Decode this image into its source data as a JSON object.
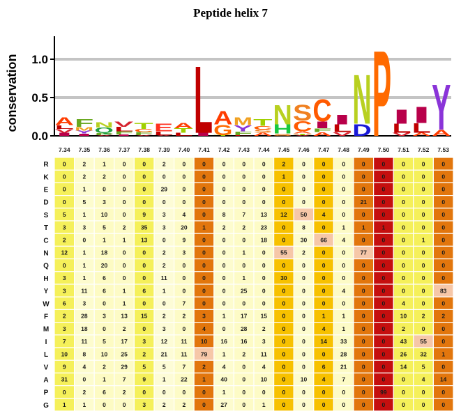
{
  "title": "Peptide helix 7",
  "chart_data": [
    {
      "type": "sequence-logo",
      "ylabel": "conservation",
      "ylim": [
        0,
        1.3
      ],
      "yticks": [
        "0.0",
        "0.5",
        "1.0"
      ],
      "grid": true,
      "positions": [
        "7.34",
        "7.35",
        "7.36",
        "7.37",
        "7.38",
        "7.39",
        "7.40",
        "7.41",
        "7.42",
        "7.43",
        "7.44",
        "7.45",
        "7.46",
        "7.47",
        "7.48",
        "7.49",
        "7.50",
        "7.51",
        "7.52",
        "7.53"
      ],
      "stacks": [
        [
          [
            "I",
            0.04
          ],
          [
            "V",
            0.05
          ],
          [
            "L",
            0.05
          ],
          [
            "A",
            0.1
          ]
        ],
        [
          [
            "I",
            0.03
          ],
          [
            "Y",
            0.04
          ],
          [
            "M",
            0.05
          ],
          [
            "F",
            0.1
          ]
        ],
        [
          [
            "V",
            0.01
          ],
          [
            "F",
            0.03
          ],
          [
            "Q",
            0.07
          ],
          [
            "N",
            0.07
          ]
        ],
        [
          [
            "I",
            0.02
          ],
          [
            "F",
            0.04
          ],
          [
            "L",
            0.06
          ],
          [
            "V",
            0.07
          ]
        ],
        [
          [
            "V",
            0.01
          ],
          [
            "F",
            0.04
          ],
          [
            "C",
            0.04
          ],
          [
            "T",
            0.08
          ]
        ],
        [
          [
            "V",
            0.01
          ],
          [
            "L",
            0.05
          ],
          [
            "E",
            0.1
          ]
        ],
        [
          [
            "L",
            0.04
          ],
          [
            "T",
            0.06
          ],
          [
            "A",
            0.07
          ]
        ],
        [
          [
            "I",
            0.04
          ],
          [
            "L",
            0.9
          ]
        ],
        [
          [
            "T",
            0.01
          ],
          [
            "G",
            0.14
          ],
          [
            "A",
            0.18
          ]
        ],
        [
          [
            "L",
            0.01
          ],
          [
            "F",
            0.05
          ],
          [
            "Y",
            0.08
          ],
          [
            "M",
            0.1
          ]
        ],
        [
          [
            "A",
            0.04
          ],
          [
            "S",
            0.04
          ],
          [
            "C",
            0.05
          ],
          [
            "T",
            0.09
          ]
        ],
        [
          [
            "S",
            0.03
          ],
          [
            "H",
            0.12
          ],
          [
            "N",
            0.26
          ]
        ],
        [
          [
            "V",
            0.01
          ],
          [
            "T",
            0.02
          ],
          [
            "A",
            0.03
          ],
          [
            "C",
            0.14
          ],
          [
            "S",
            0.21
          ]
        ],
        [
          [
            "A",
            0.05
          ],
          [
            "F",
            0.05
          ],
          [
            "I",
            0.09
          ],
          [
            "C",
            0.3
          ]
        ],
        [
          [
            "V",
            0.05
          ],
          [
            "L",
            0.1
          ],
          [
            "I",
            0.13
          ]
        ],
        [
          [
            "D",
            0.16
          ],
          [
            "N",
            0.66
          ]
        ],
        [
          [
            "P",
            1.15
          ]
        ],
        [
          [
            "V",
            0.04
          ],
          [
            "L",
            0.12
          ],
          [
            "I",
            0.19
          ]
        ],
        [
          [
            "A",
            0.04
          ],
          [
            "L",
            0.13
          ],
          [
            "I",
            0.22
          ]
        ],
        [
          [
            "A",
            0.08
          ],
          [
            "Y",
            0.61
          ]
        ]
      ]
    },
    {
      "type": "heatmap",
      "columns": [
        "7.34",
        "7.35",
        "7.36",
        "7.37",
        "7.38",
        "7.39",
        "7.40",
        "7.41",
        "7.42",
        "7.43",
        "7.44",
        "7.45",
        "7.46",
        "7.47",
        "7.48",
        "7.49",
        "7.50",
        "7.51",
        "7.52",
        "7.53"
      ],
      "rows": [
        "R",
        "K",
        "E",
        "D",
        "S",
        "T",
        "C",
        "N",
        "Q",
        "H",
        "Y",
        "W",
        "F",
        "M",
        "I",
        "L",
        "V",
        "A",
        "P",
        "G"
      ],
      "values": [
        [
          0,
          2,
          1,
          0,
          0,
          2,
          0,
          0,
          0,
          0,
          0,
          2,
          0,
          0,
          0,
          0,
          0,
          0,
          0,
          0
        ],
        [
          0,
          2,
          2,
          0,
          0,
          0,
          0,
          0,
          0,
          0,
          0,
          1,
          0,
          0,
          0,
          0,
          0,
          0,
          0,
          0
        ],
        [
          0,
          1,
          0,
          0,
          0,
          29,
          0,
          0,
          0,
          0,
          0,
          0,
          0,
          0,
          0,
          0,
          0,
          0,
          0,
          0
        ],
        [
          0,
          5,
          3,
          0,
          0,
          0,
          0,
          0,
          0,
          0,
          0,
          0,
          0,
          0,
          0,
          21,
          0,
          0,
          0,
          0
        ],
        [
          5,
          1,
          10,
          0,
          9,
          3,
          4,
          0,
          8,
          7,
          13,
          12,
          50,
          4,
          0,
          0,
          0,
          0,
          0,
          0
        ],
        [
          3,
          3,
          5,
          2,
          35,
          3,
          20,
          1,
          2,
          2,
          23,
          0,
          8,
          0,
          1,
          1,
          1,
          0,
          0,
          0
        ],
        [
          2,
          0,
          1,
          1,
          13,
          0,
          9,
          0,
          0,
          0,
          18,
          0,
          30,
          66,
          4,
          0,
          0,
          0,
          1,
          0
        ],
        [
          12,
          1,
          18,
          0,
          0,
          2,
          3,
          0,
          0,
          1,
          0,
          55,
          2,
          0,
          0,
          77,
          0,
          0,
          0,
          0
        ],
        [
          0,
          1,
          20,
          0,
          0,
          2,
          0,
          0,
          0,
          0,
          0,
          0,
          0,
          0,
          0,
          0,
          0,
          0,
          0,
          0
        ],
        [
          3,
          1,
          6,
          0,
          0,
          11,
          0,
          0,
          0,
          1,
          0,
          30,
          0,
          0,
          0,
          0,
          0,
          0,
          0,
          0
        ],
        [
          3,
          11,
          6,
          1,
          6,
          1,
          0,
          0,
          0,
          25,
          0,
          0,
          0,
          0,
          4,
          0,
          0,
          0,
          0,
          83
        ],
        [
          6,
          3,
          0,
          1,
          0,
          0,
          7,
          0,
          0,
          0,
          0,
          0,
          0,
          0,
          0,
          0,
          0,
          4,
          0,
          0
        ],
        [
          2,
          28,
          3,
          13,
          15,
          2,
          2,
          3,
          1,
          17,
          15,
          0,
          0,
          1,
          1,
          0,
          0,
          10,
          2,
          2
        ],
        [
          3,
          18,
          0,
          2,
          0,
          3,
          0,
          4,
          0,
          28,
          2,
          0,
          0,
          4,
          1,
          0,
          0,
          2,
          0,
          0
        ],
        [
          7,
          11,
          5,
          17,
          3,
          12,
          11,
          10,
          16,
          16,
          3,
          0,
          0,
          14,
          33,
          0,
          0,
          43,
          55,
          0
        ],
        [
          10,
          8,
          10,
          25,
          2,
          21,
          11,
          79,
          1,
          2,
          11,
          0,
          0,
          0,
          28,
          0,
          0,
          26,
          32,
          1
        ],
        [
          9,
          4,
          2,
          29,
          5,
          5,
          7,
          2,
          4,
          0,
          4,
          0,
          0,
          6,
          21,
          0,
          0,
          14,
          5,
          0
        ],
        [
          31,
          0,
          1,
          7,
          9,
          1,
          22,
          1,
          40,
          0,
          10,
          0,
          10,
          4,
          7,
          0,
          0,
          0,
          4,
          14
        ],
        [
          0,
          2,
          6,
          2,
          0,
          0,
          0,
          0,
          1,
          0,
          0,
          0,
          0,
          0,
          0,
          0,
          99,
          0,
          0,
          0
        ],
        [
          1,
          1,
          0,
          0,
          3,
          2,
          2,
          0,
          27,
          0,
          1,
          0,
          0,
          0,
          0,
          0,
          0,
          0,
          0,
          0
        ]
      ],
      "column_colors": [
        "#f5f05a",
        "#fdfcce",
        "#fdfbc3",
        "#fdfbc6",
        "#f5f05a",
        "#fdfcd6",
        "#fdfbc6",
        "#e2760d",
        "#fdfcce",
        "#fdfbc6",
        "#fdfbc6",
        "#f7c100",
        "#fdfcce",
        "#f7c100",
        "#fdfbc6",
        "#e2760d",
        "#c50f0f",
        "#f5f05a",
        "#f5f05a",
        "#e2760d"
      ],
      "highlight_color": "#f6c7a8"
    }
  ],
  "aa_colors": {
    "A": "#ff3c00",
    "V": "#d6212d",
    "L": "#c00000",
    "I": "#b8004a",
    "M": "#f0a020",
    "F": "#6aa820",
    "Y": "#8a34d8",
    "W": "#4f8a1a",
    "T": "#a0d000",
    "S": "#f08020",
    "N": "#b8d020",
    "Q": "#20a040",
    "C": "#ff5a00",
    "G": "#ff6a00",
    "H": "#18c840",
    "D": "#1a1ad8",
    "E": "#ff3020",
    "K": "#2040c0",
    "R": "#2040c0",
    "P": "#ff6a00"
  }
}
